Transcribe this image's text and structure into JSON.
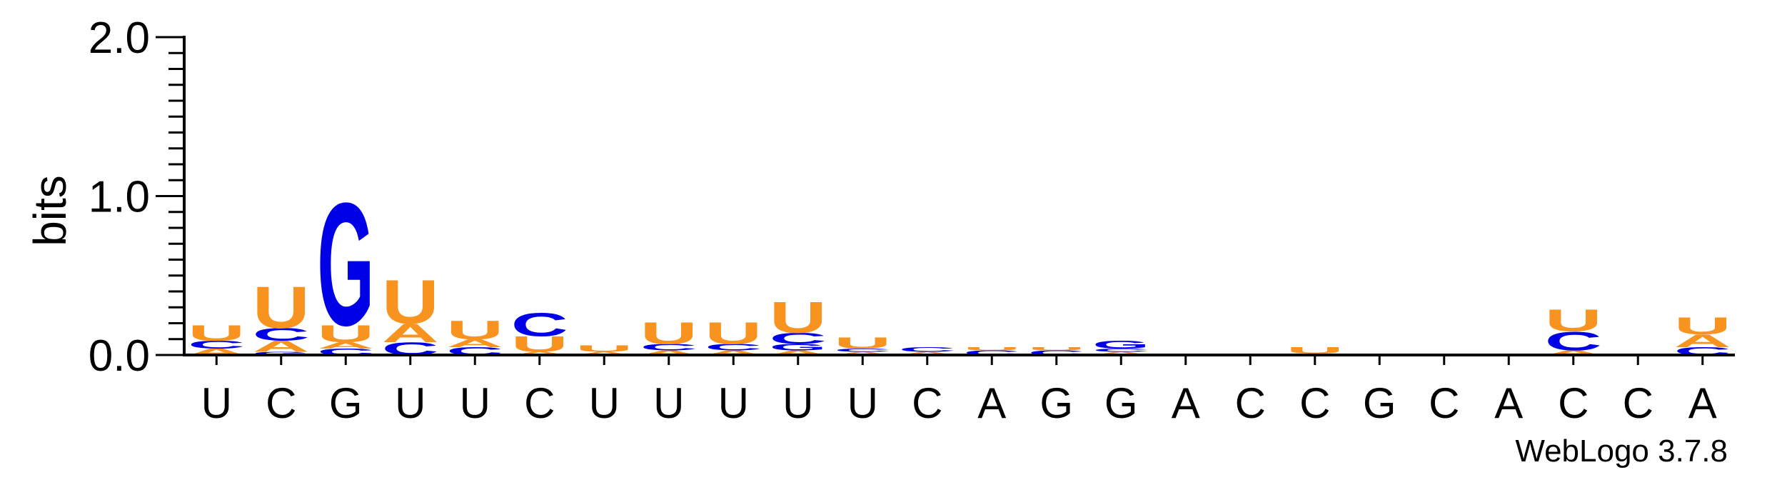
{
  "chart_data": {
    "type": "sequence-logo",
    "ylabel": "bits",
    "ylim": [
      0,
      2
    ],
    "yticks": [
      "0.0",
      "1.0",
      "2.0"
    ],
    "yminor_step": 0.1,
    "grid": false,
    "legend": "none",
    "colors": {
      "A": "#f7931e",
      "U": "#f7931e",
      "C": "#0000e6",
      "G": "#0000e6"
    },
    "positions": [
      {
        "label": "U",
        "stack": [
          [
            "A",
            0.04
          ],
          [
            "C",
            0.05
          ],
          [
            "U",
            0.1
          ]
        ]
      },
      {
        "label": "C",
        "stack": [
          [
            "G",
            0.02
          ],
          [
            "A",
            0.07
          ],
          [
            "C",
            0.08
          ],
          [
            "U",
            0.27
          ]
        ]
      },
      {
        "label": "G",
        "stack": [
          [
            "C",
            0.04
          ],
          [
            "A",
            0.04
          ],
          [
            "U",
            0.11
          ],
          [
            "G",
            0.79
          ]
        ]
      },
      {
        "label": "U",
        "stack": [
          [
            "C",
            0.08
          ],
          [
            "A",
            0.12
          ],
          [
            "U",
            0.28
          ]
        ]
      },
      {
        "label": "U",
        "stack": [
          [
            "C",
            0.05
          ],
          [
            "A",
            0.05
          ],
          [
            "U",
            0.12
          ]
        ]
      },
      {
        "label": "C",
        "stack": [
          [
            "A",
            0.02
          ],
          [
            "U",
            0.1
          ],
          [
            "C",
            0.15
          ]
        ]
      },
      {
        "label": "U",
        "stack": [
          [
            "A",
            0.02
          ],
          [
            "U",
            0.04
          ]
        ]
      },
      {
        "label": "U",
        "stack": [
          [
            "A",
            0.03
          ],
          [
            "C",
            0.04
          ],
          [
            "U",
            0.14
          ]
        ]
      },
      {
        "label": "U",
        "stack": [
          [
            "A",
            0.03
          ],
          [
            "C",
            0.04
          ],
          [
            "U",
            0.14
          ]
        ]
      },
      {
        "label": "U",
        "stack": [
          [
            "A",
            0.03
          ],
          [
            "G",
            0.04
          ],
          [
            "C",
            0.07
          ],
          [
            "U",
            0.2
          ]
        ]
      },
      {
        "label": "U",
        "stack": [
          [
            "A",
            0.02
          ],
          [
            "C",
            0.02
          ],
          [
            "U",
            0.07
          ]
        ]
      },
      {
        "label": "C",
        "stack": [
          [
            "A",
            0.02
          ],
          [
            "C",
            0.03
          ]
        ]
      },
      {
        "label": "A",
        "stack": [
          [
            "C",
            0.03
          ],
          [
            "U",
            0.02
          ]
        ]
      },
      {
        "label": "G",
        "stack": [
          [
            "C",
            0.03
          ],
          [
            "U",
            0.02
          ]
        ]
      },
      {
        "label": "G",
        "stack": [
          [
            "A",
            0.02
          ],
          [
            "C",
            0.02
          ],
          [
            "G",
            0.05
          ]
        ]
      },
      {
        "label": "A",
        "stack": [
          [
            "A",
            0.01
          ]
        ]
      },
      {
        "label": "C",
        "stack": [
          [
            "U",
            0.01
          ]
        ]
      },
      {
        "label": "C",
        "stack": [
          [
            "A",
            0.01
          ],
          [
            "U",
            0.04
          ]
        ]
      },
      {
        "label": "G",
        "stack": [
          [
            "C",
            0.01
          ]
        ]
      },
      {
        "label": "C",
        "stack": [
          [
            "U",
            0.01
          ]
        ]
      },
      {
        "label": "A",
        "stack": [
          [
            "A",
            0.01
          ]
        ]
      },
      {
        "label": "C",
        "stack": [
          [
            "A",
            0.03
          ],
          [
            "C",
            0.12
          ],
          [
            "U",
            0.14
          ]
        ]
      },
      {
        "label": "C",
        "stack": [
          [
            "C",
            0.01
          ]
        ]
      },
      {
        "label": "A",
        "stack": [
          [
            "C",
            0.05
          ],
          [
            "A",
            0.08
          ],
          [
            "U",
            0.11
          ]
        ]
      }
    ]
  },
  "credit": "WebLogo 3.7.8"
}
